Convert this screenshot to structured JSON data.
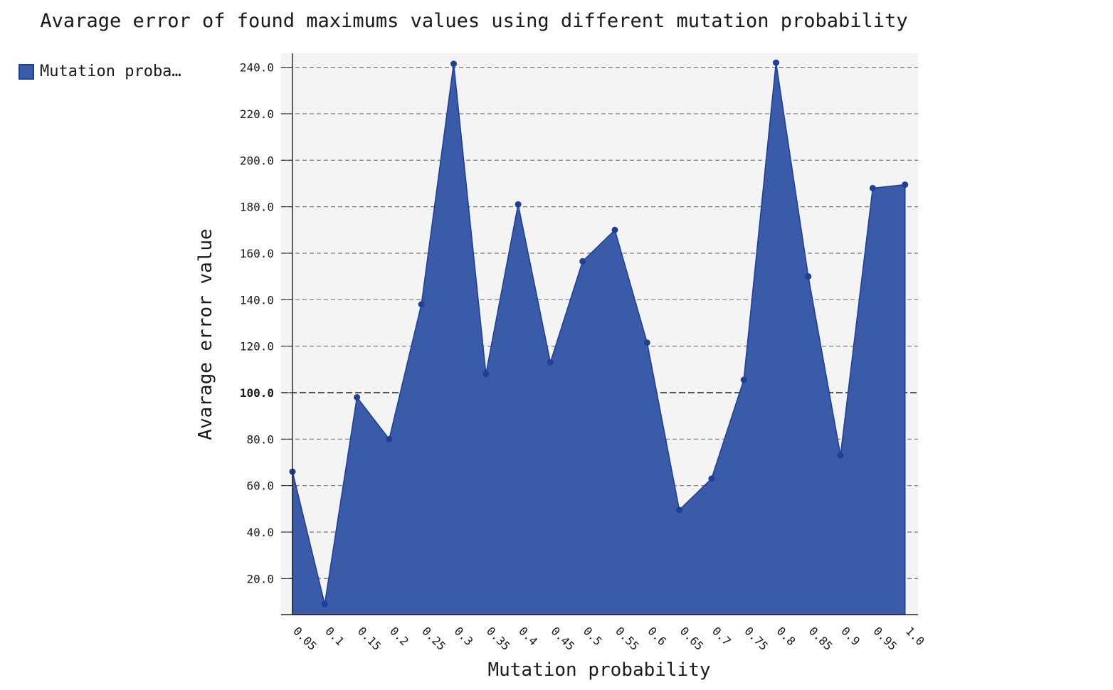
{
  "chart_data": {
    "type": "area",
    "title": "Avarage error of found maximums values using different mutation probability",
    "xlabel": "Mutation probability",
    "ylabel": "Avarage error value",
    "categories": [
      "0.05",
      "0.1",
      "0.15",
      "0.2",
      "0.25",
      "0.3",
      "0.35",
      "0.4",
      "0.45",
      "0.5",
      "0.55",
      "0.6",
      "0.65",
      "0.7",
      "0.75",
      "0.8",
      "0.85",
      "0.9",
      "0.95",
      "1.0"
    ],
    "series": [
      {
        "name": "Mutation proba…",
        "values": [
          66.0,
          9.0,
          98.0,
          80.0,
          138.0,
          241.5,
          108.0,
          181.0,
          113.0,
          156.5,
          170.0,
          121.5,
          49.5,
          63.0,
          105.5,
          242.0,
          150.0,
          73.0,
          188.0,
          189.5
        ]
      }
    ],
    "ylim": [
      4.5,
      246.0
    ],
    "yticks": [
      "20.0",
      "40.0",
      "60.0",
      "80.0",
      "100.0",
      "120.0",
      "140.0",
      "160.0",
      "180.0",
      "200.0",
      "220.0",
      "240.0"
    ],
    "reference_line": 100.0,
    "grid": true,
    "legend_position": "left",
    "colors": {
      "fill": "#3a5ca8",
      "line": "#1f3f99",
      "plot_bg": "#f4f4f4"
    }
  }
}
